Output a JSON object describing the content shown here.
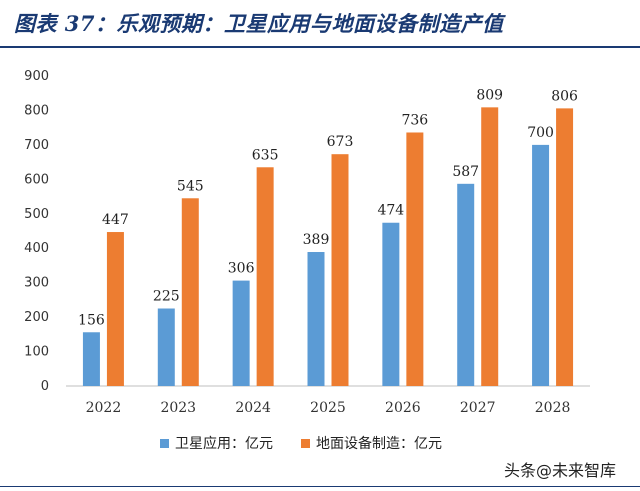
{
  "title": "图表 37：乐观预期：卫星应用与地面设备制造产值",
  "watermark": "头条@未来智库",
  "colors": {
    "title": "#1a3a73",
    "series_1": "#5b9bd5",
    "series_2": "#ed7d31"
  },
  "legend": [
    "卫星应用：亿元",
    "地面设备制造：亿元"
  ],
  "chart_data": {
    "type": "bar",
    "categories": [
      "2022",
      "2023",
      "2024",
      "2025",
      "2026",
      "2027",
      "2028"
    ],
    "series": [
      {
        "name": "卫星应用：亿元",
        "values": [
          156,
          225,
          306,
          389,
          474,
          587,
          700
        ]
      },
      {
        "name": "地面设备制造：亿元",
        "values": [
          447,
          545,
          635,
          673,
          736,
          809,
          806
        ]
      }
    ],
    "ylim": [
      0,
      900
    ],
    "yticks": [
      0,
      100,
      200,
      300,
      400,
      500,
      600,
      700,
      800,
      900
    ],
    "grid": false,
    "legend_position": "bottom"
  }
}
